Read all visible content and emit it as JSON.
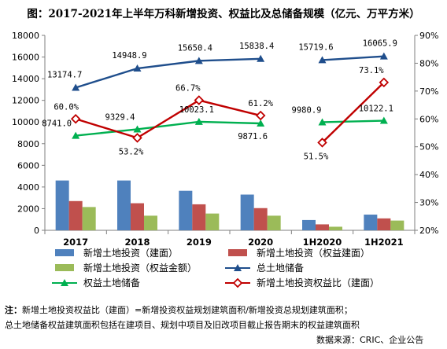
{
  "title": "图：2017-2021年上半年万科新增投资、权益比及总储备规模（亿元、万平方米）",
  "note": {
    "label": "注：",
    "line1": "新增土地投资权益比（建面）=新增投资权益规划建筑面积/新增投资总规划建筑面积；",
    "line2": "总土地储备权益建筑面积包括在建项目、规划中项目及旧改项目截止报告期末的权益建筑面积"
  },
  "source": "数据来源：CRIC、企业公告",
  "colors": {
    "bar_total": "#4f81bd",
    "bar_equity": "#c0504d",
    "bar_amount": "#9bbb59",
    "line_total_reserve": "#1f4e8c",
    "line_equity_reserve": "#00b050",
    "line_equity_ratio": "#c00000"
  },
  "chart_data": {
    "type": "bar",
    "categories": [
      "2017",
      "2018",
      "2019",
      "2020",
      "1H2020",
      "1H2021"
    ],
    "y_left": {
      "min": 0,
      "max": 18000,
      "step": 2000
    },
    "y_right": {
      "min": 20,
      "max": 90,
      "step": 10,
      "suffix": "%"
    },
    "series": [
      {
        "name": "新增土地投资（建面）",
        "kind": "bar",
        "axis": "left",
        "values": [
          4600,
          4600,
          3650,
          3300,
          950,
          1450
        ]
      },
      {
        "name": "新增土地投资（权益建面）",
        "kind": "bar",
        "axis": "left",
        "values": [
          2700,
          2500,
          2400,
          2050,
          550,
          1100
        ]
      },
      {
        "name": "新增土地投资（权益金额）",
        "kind": "bar",
        "axis": "left",
        "values": [
          2150,
          1350,
          1550,
          1350,
          330,
          900
        ]
      },
      {
        "name": "总土地储备",
        "kind": "line",
        "axis": "left",
        "marker": "triangle",
        "values": [
          13174.7,
          14948.9,
          15650.4,
          15838.4,
          15719.6,
          16065.9
        ],
        "labels": [
          "13174.7",
          "14948.9",
          "15650.4",
          "15838.4",
          "15719.6",
          "16065.9"
        ],
        "break_after": 3
      },
      {
        "name": "权益土地储备",
        "kind": "line",
        "axis": "left",
        "marker": "triangle",
        "values": [
          8741.0,
          9329.4,
          10023.1,
          9871.6,
          9980.9,
          10122.1
        ],
        "labels": [
          "8741.0",
          "9329.4",
          "10023.1",
          "9871.6",
          "9980.9",
          "10122.1"
        ],
        "break_after": 3
      },
      {
        "name": "新增土地投资权益比（建面）",
        "kind": "line",
        "axis": "right",
        "marker": "diamond",
        "values": [
          60.0,
          53.2,
          66.7,
          61.2,
          51.5,
          73.1
        ],
        "labels": [
          "60.0%",
          "53.2%",
          "66.7%",
          "61.2%",
          "51.5%",
          "73.1%"
        ],
        "break_after": 3
      }
    ],
    "legend_position": "bottom"
  }
}
